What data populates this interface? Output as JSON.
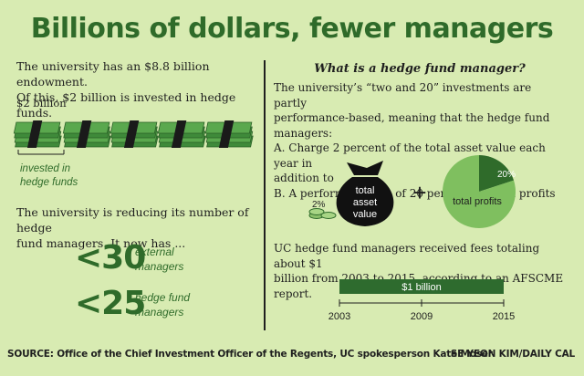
{
  "title": "Billions of dollars, fewer managers",
  "left": {
    "intro_line1": "The university has an $8.8 billion endowment.",
    "intro_line2": "Of this, $2 billion is invested in hedge funds.",
    "billion_label": "$2 billion",
    "invested_line1": "invested in",
    "invested_line2": "hedge funds",
    "reduce_line1": "The university is reducing its number of hedge",
    "reduce_line2": "fund managers. It now has ...",
    "external_number": "<30",
    "external_line1": "external",
    "external_line2": "managers",
    "hedge_number": "<25",
    "hedge_line1": "hedge fund",
    "hedge_line2": "managers"
  },
  "right": {
    "heading": "What is a hedge fund manager?",
    "para_lines": [
      "The university’s “two and 20” investments are partly",
      "performance-based, meaning that the hedge fund managers:",
      "A. Charge 2 percent of the total asset value each year in",
      "addition to",
      "B. A performance fee of 20 percent on total profits"
    ],
    "bag_line1": "total",
    "bag_line2": "asset",
    "bag_line3": "value",
    "two_percent": "2%",
    "plus": "+",
    "twenty_percent": "20%",
    "total_profits": "total profits",
    "fees_lines": [
      "UC hedge fund managers received fees totaling about $1",
      "billion from 2003 to 2015, according to an AFSCME report."
    ],
    "bar_label": "$1 billion",
    "timeline_ticks": [
      "2003",
      "2009",
      "2015"
    ]
  },
  "footer": {
    "source": "SOURCE: Office of the Chief Investment Officer of the Regents, UC spokesperson Kate Moser",
    "credit": "SE YEON KIM/DAILY CAL"
  },
  "colors": {
    "background": "#d8ebb2",
    "dark_green": "#2f6b2a",
    "bar_green": "#2e6b2e",
    "pie_light": "#7fbf5f",
    "pie_dark": "#2f6b2a"
  },
  "chart_data": {
    "type": "pie",
    "slices": [
      {
        "label": "20%",
        "value": 20
      },
      {
        "label": "total profits",
        "value": 80
      }
    ]
  }
}
